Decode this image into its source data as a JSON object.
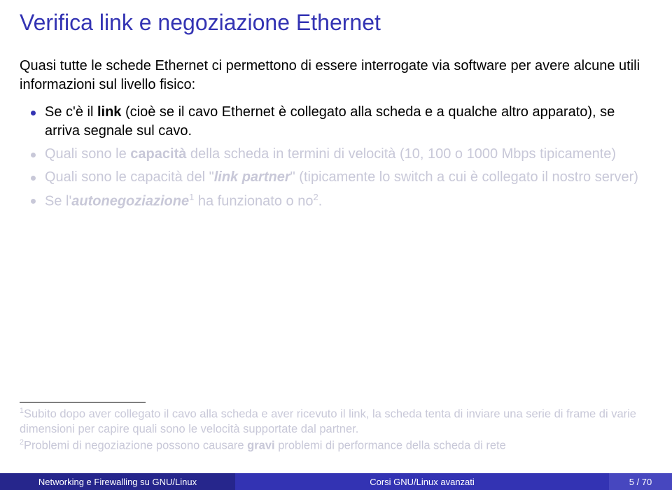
{
  "title": "Verifica link e negoziazione Ethernet",
  "intro": "Quasi tutte le schede Ethernet ci permettono di essere interrogate via software per avere alcune utili informazioni sul livello fisico:",
  "bullets": {
    "b1_pre": "Se c'è il ",
    "b1_bold": "link",
    "b1_post": " (cioè se il cavo Ethernet è collegato alla scheda e a qualche altro apparato), se arriva segnale sul cavo.",
    "b2_pre": "Quali sono le ",
    "b2_bold": "capacità",
    "b2_post": " della scheda in termini di velocità (10, 100 o 1000 Mbps tipicamente)",
    "b3_pre": "Quali sono le capacità del \"",
    "b3_italic": "link partner",
    "b3_post": "\" (tipicamente lo switch a cui è collegato il nostro server)",
    "b4_pre": "Se l'",
    "b4_italic": "autonegoziazione",
    "b4_sup": "1",
    "b4_mid": " ha funzionato o no",
    "b4_sup2": "2",
    "b4_post": "."
  },
  "footnotes": {
    "f1_sup": "1",
    "f1_text": "Subito dopo aver collegato il cavo alla scheda e aver ricevuto il link, la scheda tenta di inviare una serie di frame di varie dimensioni per capire quali sono le velocità supportate dal partner.",
    "f2_sup": "2",
    "f2_pre": "Problemi di negoziazione possono causare ",
    "f2_bold": "gravi",
    "f2_post": " problemi di performance della scheda di rete"
  },
  "footer": {
    "left": "Networking e Firewalling su GNU/Linux",
    "mid": "Corsi GNU/Linux avanzati",
    "right": "5 / 70"
  }
}
